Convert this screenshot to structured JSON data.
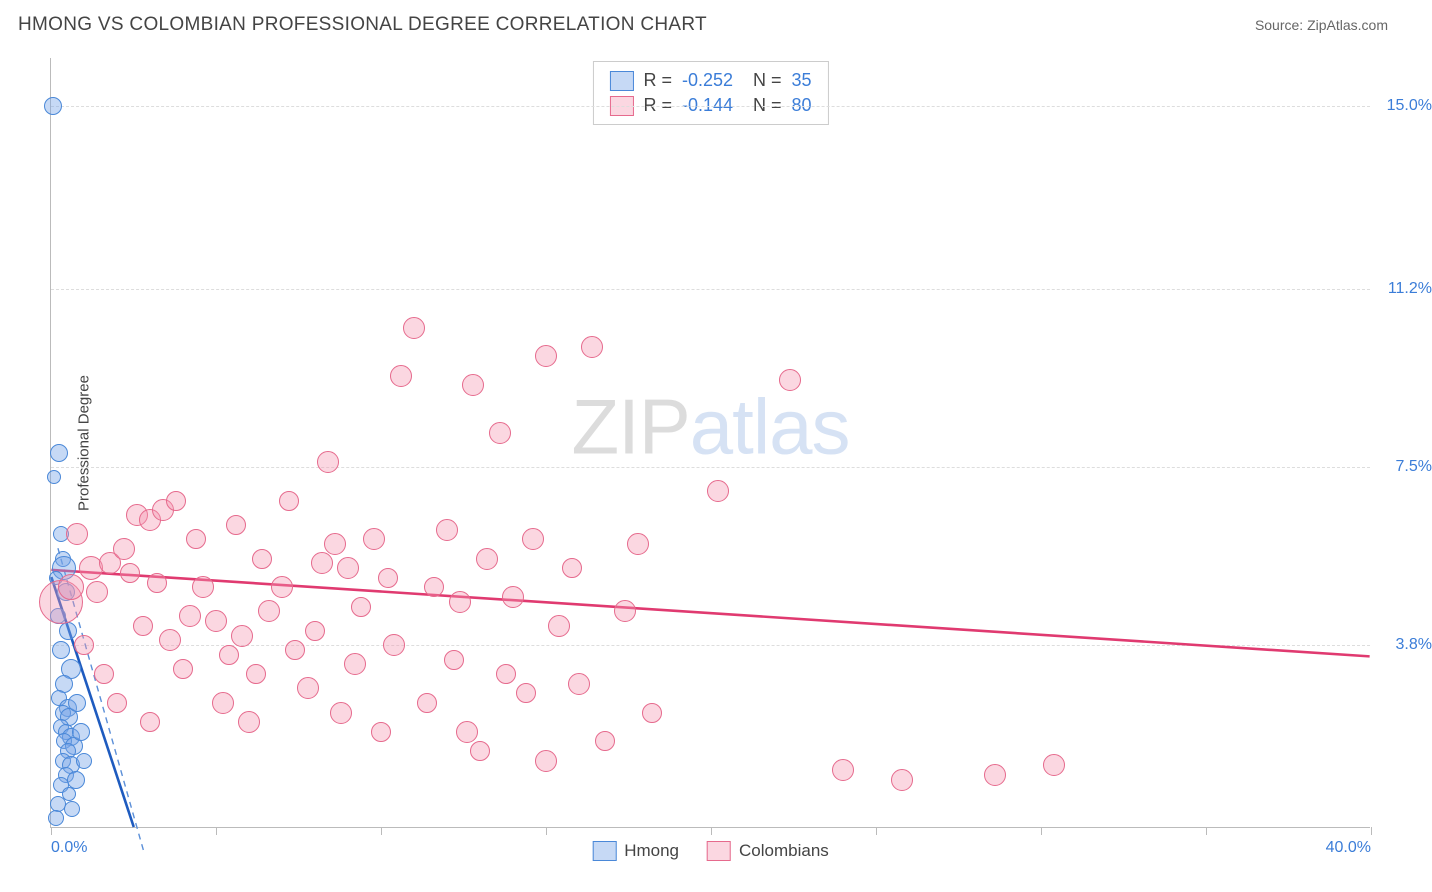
{
  "header": {
    "title": "HMONG VS COLOMBIAN PROFESSIONAL DEGREE CORRELATION CHART",
    "source_label": "Source: ZipAtlas.com"
  },
  "chart": {
    "type": "scatter",
    "y_axis_label": "Professional Degree",
    "xlim": [
      0,
      40
    ],
    "ylim": [
      0,
      16
    ],
    "background_color": "#ffffff",
    "grid_color": "#dddddd",
    "grid_lines_y": [
      {
        "value": 3.8,
        "label": "3.8%"
      },
      {
        "value": 7.5,
        "label": "7.5%"
      },
      {
        "value": 11.2,
        "label": "11.2%"
      },
      {
        "value": 15.0,
        "label": "15.0%"
      }
    ],
    "x_ticks": [
      0,
      5,
      10,
      15,
      20,
      25,
      30,
      35,
      40
    ],
    "x_labels": [
      {
        "value": 0,
        "label": "0.0%"
      },
      {
        "value": 40,
        "label": "40.0%"
      }
    ],
    "watermark": {
      "part1": "ZIP",
      "part2": "atlas"
    },
    "series": [
      {
        "key": "hmong",
        "label": "Hmong",
        "fill_color": "rgba(120,165,230,0.42)",
        "stroke_color": "#4a88d8",
        "marker_radius": 9,
        "trend": {
          "x1": 0,
          "y1": 5.2,
          "x2": 2.5,
          "y2": 0.0,
          "color": "#1e5bbf",
          "width": 2.6
        },
        "trend_ext": {
          "x1": 0.2,
          "y1": 5.8,
          "x2": 2.8,
          "y2": -0.5,
          "color": "#5b8fd8",
          "dash": "6,5",
          "width": 1.4
        },
        "R": "-0.252",
        "N": "35",
        "points": [
          {
            "x": 0.05,
            "y": 15.0,
            "r": 9
          },
          {
            "x": 0.25,
            "y": 7.8,
            "r": 9
          },
          {
            "x": 0.1,
            "y": 7.3,
            "r": 7
          },
          {
            "x": 0.3,
            "y": 6.1,
            "r": 8
          },
          {
            "x": 0.35,
            "y": 5.6,
            "r": 8
          },
          {
            "x": 0.4,
            "y": 5.4,
            "r": 12
          },
          {
            "x": 0.15,
            "y": 5.2,
            "r": 7
          },
          {
            "x": 0.45,
            "y": 4.9,
            "r": 9
          },
          {
            "x": 0.2,
            "y": 4.4,
            "r": 8
          },
          {
            "x": 0.5,
            "y": 4.1,
            "r": 9
          },
          {
            "x": 0.3,
            "y": 3.7,
            "r": 9
          },
          {
            "x": 0.6,
            "y": 3.3,
            "r": 10
          },
          {
            "x": 0.4,
            "y": 3.0,
            "r": 9
          },
          {
            "x": 0.25,
            "y": 2.7,
            "r": 8
          },
          {
            "x": 0.5,
            "y": 2.5,
            "r": 9
          },
          {
            "x": 0.35,
            "y": 2.4,
            "r": 8
          },
          {
            "x": 0.55,
            "y": 2.3,
            "r": 9
          },
          {
            "x": 0.3,
            "y": 2.1,
            "r": 8
          },
          {
            "x": 0.45,
            "y": 2.0,
            "r": 8
          },
          {
            "x": 0.6,
            "y": 1.9,
            "r": 9
          },
          {
            "x": 0.4,
            "y": 1.8,
            "r": 8
          },
          {
            "x": 0.7,
            "y": 1.7,
            "r": 9
          },
          {
            "x": 0.5,
            "y": 1.6,
            "r": 8
          },
          {
            "x": 0.35,
            "y": 1.4,
            "r": 8
          },
          {
            "x": 0.6,
            "y": 1.3,
            "r": 9
          },
          {
            "x": 0.45,
            "y": 1.1,
            "r": 8
          },
          {
            "x": 0.75,
            "y": 1.0,
            "r": 9
          },
          {
            "x": 0.3,
            "y": 0.9,
            "r": 8
          },
          {
            "x": 0.55,
            "y": 0.7,
            "r": 7
          },
          {
            "x": 0.2,
            "y": 0.5,
            "r": 8
          },
          {
            "x": 0.9,
            "y": 2.0,
            "r": 9
          },
          {
            "x": 0.8,
            "y": 2.6,
            "r": 9
          },
          {
            "x": 1.0,
            "y": 1.4,
            "r": 8
          },
          {
            "x": 0.15,
            "y": 0.2,
            "r": 8
          },
          {
            "x": 0.65,
            "y": 0.4,
            "r": 8
          }
        ]
      },
      {
        "key": "colombians",
        "label": "Colombians",
        "fill_color": "rgba(245,150,175,0.38)",
        "stroke_color": "#e66a8d",
        "marker_radius": 11,
        "trend": {
          "x1": 0,
          "y1": 5.35,
          "x2": 40,
          "y2": 3.55,
          "color": "#e03a70",
          "width": 2.6
        },
        "R": "-0.144",
        "N": "80",
        "points": [
          {
            "x": 0.3,
            "y": 4.7,
            "r": 22
          },
          {
            "x": 0.6,
            "y": 5.0,
            "r": 13
          },
          {
            "x": 1.2,
            "y": 5.4,
            "r": 12
          },
          {
            "x": 1.8,
            "y": 5.5,
            "r": 11
          },
          {
            "x": 1.4,
            "y": 4.9,
            "r": 11
          },
          {
            "x": 2.2,
            "y": 5.8,
            "r": 11
          },
          {
            "x": 2.6,
            "y": 6.5,
            "r": 11
          },
          {
            "x": 2.4,
            "y": 5.3,
            "r": 10
          },
          {
            "x": 3.0,
            "y": 6.4,
            "r": 11
          },
          {
            "x": 3.4,
            "y": 6.6,
            "r": 11
          },
          {
            "x": 3.2,
            "y": 5.1,
            "r": 10
          },
          {
            "x": 2.8,
            "y": 4.2,
            "r": 10
          },
          {
            "x": 3.6,
            "y": 3.9,
            "r": 11
          },
          {
            "x": 4.2,
            "y": 4.4,
            "r": 11
          },
          {
            "x": 4.0,
            "y": 3.3,
            "r": 10
          },
          {
            "x": 4.6,
            "y": 5.0,
            "r": 11
          },
          {
            "x": 5.0,
            "y": 4.3,
            "r": 11
          },
          {
            "x": 5.4,
            "y": 3.6,
            "r": 10
          },
          {
            "x": 5.2,
            "y": 2.6,
            "r": 11
          },
          {
            "x": 5.8,
            "y": 4.0,
            "r": 11
          },
          {
            "x": 6.2,
            "y": 3.2,
            "r": 10
          },
          {
            "x": 6.0,
            "y": 2.2,
            "r": 11
          },
          {
            "x": 6.6,
            "y": 4.5,
            "r": 11
          },
          {
            "x": 7.0,
            "y": 5.0,
            "r": 11
          },
          {
            "x": 7.4,
            "y": 3.7,
            "r": 10
          },
          {
            "x": 7.8,
            "y": 2.9,
            "r": 11
          },
          {
            "x": 8.2,
            "y": 5.5,
            "r": 11
          },
          {
            "x": 8.0,
            "y": 4.1,
            "r": 10
          },
          {
            "x": 8.6,
            "y": 5.9,
            "r": 11
          },
          {
            "x": 8.4,
            "y": 7.6,
            "r": 11
          },
          {
            "x": 9.0,
            "y": 5.4,
            "r": 11
          },
          {
            "x": 9.4,
            "y": 4.6,
            "r": 10
          },
          {
            "x": 9.2,
            "y": 3.4,
            "r": 11
          },
          {
            "x": 8.8,
            "y": 2.4,
            "r": 11
          },
          {
            "x": 9.8,
            "y": 6.0,
            "r": 11
          },
          {
            "x": 10.2,
            "y": 5.2,
            "r": 10
          },
          {
            "x": 10.6,
            "y": 9.4,
            "r": 11
          },
          {
            "x": 10.4,
            "y": 3.8,
            "r": 11
          },
          {
            "x": 11.0,
            "y": 10.4,
            "r": 11
          },
          {
            "x": 11.6,
            "y": 5.0,
            "r": 10
          },
          {
            "x": 12.0,
            "y": 6.2,
            "r": 11
          },
          {
            "x": 12.4,
            "y": 4.7,
            "r": 11
          },
          {
            "x": 12.8,
            "y": 9.2,
            "r": 11
          },
          {
            "x": 12.2,
            "y": 3.5,
            "r": 10
          },
          {
            "x": 12.6,
            "y": 2.0,
            "r": 11
          },
          {
            "x": 13.2,
            "y": 5.6,
            "r": 11
          },
          {
            "x": 13.6,
            "y": 8.2,
            "r": 11
          },
          {
            "x": 13.0,
            "y": 1.6,
            "r": 10
          },
          {
            "x": 14.0,
            "y": 4.8,
            "r": 11
          },
          {
            "x": 14.6,
            "y": 6.0,
            "r": 11
          },
          {
            "x": 15.0,
            "y": 9.8,
            "r": 11
          },
          {
            "x": 14.4,
            "y": 2.8,
            "r": 10
          },
          {
            "x": 15.4,
            "y": 4.2,
            "r": 11
          },
          {
            "x": 15.0,
            "y": 1.4,
            "r": 11
          },
          {
            "x": 15.8,
            "y": 5.4,
            "r": 10
          },
          {
            "x": 16.4,
            "y": 10.0,
            "r": 11
          },
          {
            "x": 16.0,
            "y": 3.0,
            "r": 11
          },
          {
            "x": 16.8,
            "y": 1.8,
            "r": 10
          },
          {
            "x": 17.4,
            "y": 4.5,
            "r": 11
          },
          {
            "x": 17.8,
            "y": 5.9,
            "r": 11
          },
          {
            "x": 18.2,
            "y": 2.4,
            "r": 10
          },
          {
            "x": 20.2,
            "y": 7.0,
            "r": 11
          },
          {
            "x": 22.4,
            "y": 9.3,
            "r": 11
          },
          {
            "x": 1.0,
            "y": 3.8,
            "r": 10
          },
          {
            "x": 1.6,
            "y": 3.2,
            "r": 10
          },
          {
            "x": 2.0,
            "y": 2.6,
            "r": 10
          },
          {
            "x": 3.0,
            "y": 2.2,
            "r": 10
          },
          {
            "x": 3.8,
            "y": 6.8,
            "r": 10
          },
          {
            "x": 4.4,
            "y": 6.0,
            "r": 10
          },
          {
            "x": 5.6,
            "y": 6.3,
            "r": 10
          },
          {
            "x": 6.4,
            "y": 5.6,
            "r": 10
          },
          {
            "x": 7.2,
            "y": 6.8,
            "r": 10
          },
          {
            "x": 24.0,
            "y": 1.2,
            "r": 11
          },
          {
            "x": 25.8,
            "y": 1.0,
            "r": 11
          },
          {
            "x": 28.6,
            "y": 1.1,
            "r": 11
          },
          {
            "x": 30.4,
            "y": 1.3,
            "r": 11
          },
          {
            "x": 11.4,
            "y": 2.6,
            "r": 10
          },
          {
            "x": 10.0,
            "y": 2.0,
            "r": 10
          },
          {
            "x": 0.8,
            "y": 6.1,
            "r": 11
          },
          {
            "x": 13.8,
            "y": 3.2,
            "r": 10
          }
        ]
      }
    ]
  }
}
